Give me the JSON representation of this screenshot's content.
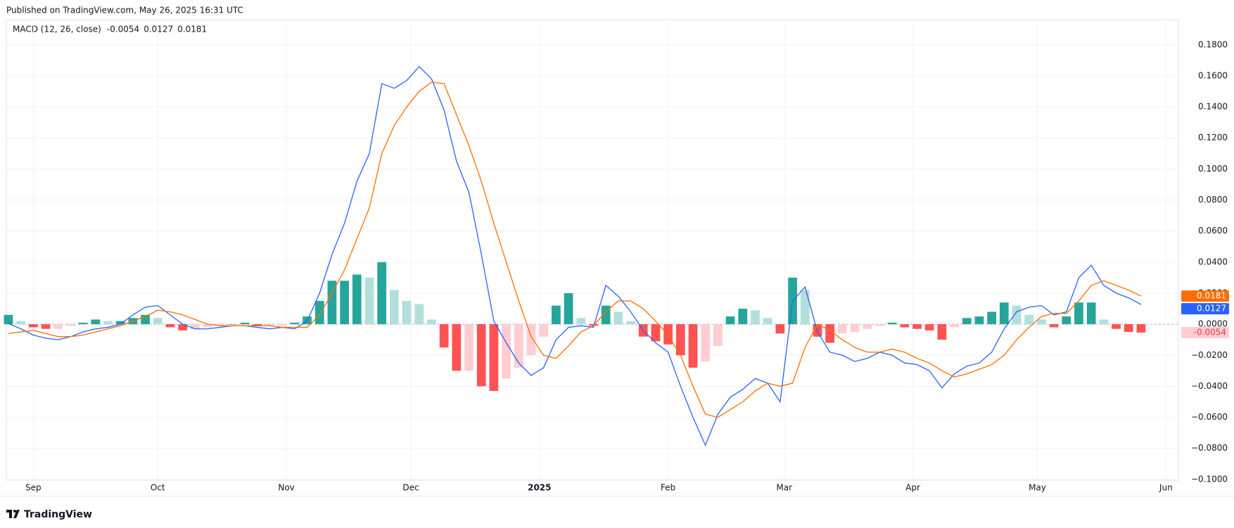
{
  "header": "Published on TradingView.com, May 26, 2025 16:31 UTC",
  "footer": "TradingView",
  "chart_data": {
    "type": "macd",
    "indicator": "MACD (12, 26, close)",
    "xlim": [
      -6.5,
      276
    ],
    "ylim": [
      -0.1005,
      0.1962
    ],
    "xticks": [
      {
        "value": 0,
        "label": "Sep"
      },
      {
        "value": 30,
        "label": "Oct"
      },
      {
        "value": 61,
        "label": "Nov"
      },
      {
        "value": 91,
        "label": "Dec"
      },
      {
        "value": 122,
        "label": "2025"
      },
      {
        "value": 153,
        "label": "Feb"
      },
      {
        "value": 181,
        "label": "Mar"
      },
      {
        "value": 212,
        "label": "Apr"
      },
      {
        "value": 242,
        "label": "May"
      },
      {
        "value": 273,
        "label": "Jun"
      }
    ],
    "yticks": [
      {
        "value": 0.18,
        "label": "0.1800"
      },
      {
        "value": 0.16,
        "label": "0.1600"
      },
      {
        "value": 0.14,
        "label": "0.1400"
      },
      {
        "value": 0.12,
        "label": "0.1200"
      },
      {
        "value": 0.1,
        "label": "0.1000"
      },
      {
        "value": 0.08,
        "label": "0.0800"
      },
      {
        "value": 0.06,
        "label": "0.0600"
      },
      {
        "value": 0.04,
        "label": "0.0400"
      },
      {
        "value": 0.02,
        "label": "0.0200"
      },
      {
        "value": 0,
        "label": "0.0000"
      },
      {
        "value": -0.02,
        "label": "−0.0200"
      },
      {
        "value": -0.04,
        "label": "−0.0400"
      },
      {
        "value": -0.06,
        "label": "−0.0600"
      },
      {
        "value": -0.08,
        "label": "−0.0800"
      },
      {
        "value": -0.1,
        "label": "−0.1000"
      }
    ],
    "grid": true,
    "x": [
      -6,
      -3,
      0,
      3,
      6,
      9,
      12,
      15,
      18,
      21,
      24,
      27,
      30,
      33,
      36,
      39,
      42,
      45,
      48,
      51,
      54,
      57,
      60,
      63,
      66,
      69,
      72,
      75,
      78,
      81,
      84,
      87,
      90,
      93,
      96,
      99,
      102,
      105,
      108,
      111,
      114,
      117,
      120,
      123,
      126,
      129,
      132,
      135,
      138,
      141,
      144,
      147,
      150,
      153,
      156,
      159,
      162,
      165,
      168,
      171,
      174,
      177,
      180,
      183,
      186,
      189,
      192,
      195,
      198,
      201,
      204,
      207,
      210,
      213,
      216,
      219,
      222,
      225,
      228,
      231,
      234,
      237,
      240,
      243,
      246,
      249,
      252,
      255,
      258,
      261,
      264,
      267
    ],
    "histogram": {
      "colors": {
        "rise_up": "#26a69a",
        "fall_up": "#b2dfdb",
        "fall_down": "#ff5252",
        "rise_down": "#ffcdd2"
      },
      "values": [
        0.006,
        0.002,
        -0.002,
        -0.003,
        -0.003,
        -0.001,
        0.001,
        0.003,
        0.002,
        0.002,
        0.004,
        0.006,
        0.004,
        -0.002,
        -0.004,
        -0.003,
        -0.002,
        -0.001,
        0.0,
        0.001,
        -0.001,
        -0.001,
        -0.001,
        0.001,
        0.005,
        0.015,
        0.028,
        0.028,
        0.032,
        0.03,
        0.04,
        0.022,
        0.015,
        0.013,
        0.003,
        -0.015,
        -0.03,
        -0.03,
        -0.04,
        -0.043,
        -0.035,
        -0.028,
        -0.02,
        -0.008,
        0.012,
        0.02,
        0.004,
        -0.001,
        0.012,
        0.008,
        0.002,
        -0.008,
        -0.011,
        -0.013,
        -0.02,
        -0.028,
        -0.024,
        -0.014,
        0.005,
        0.01,
        0.009,
        0.004,
        -0.006,
        0.03,
        0.022,
        -0.008,
        -0.012,
        -0.006,
        -0.005,
        -0.003,
        -0.001,
        0.001,
        -0.002,
        -0.003,
        -0.004,
        -0.01,
        -0.002,
        0.004,
        0.005,
        0.008,
        0.014,
        0.012,
        0.006,
        0.003,
        -0.002,
        0.005,
        0.014,
        0.014,
        0.003,
        -0.003,
        -0.005,
        -0.0054
      ],
      "label_color": "#f7a8b5"
    },
    "series": [
      {
        "color": "#2962ff",
        "values": [
          0.0005,
          -0.003,
          -0.007,
          -0.009,
          -0.01,
          -0.008,
          -0.005,
          -0.003,
          -0.002,
          0.0,
          0.006,
          0.011,
          0.012,
          0.006,
          0.0,
          -0.003,
          -0.003,
          -0.002,
          -0.001,
          -0.001,
          -0.002,
          -0.003,
          -0.002,
          -0.003,
          0.002,
          0.02,
          0.045,
          0.065,
          0.092,
          0.11,
          0.155,
          0.152,
          0.157,
          0.166,
          0.158,
          0.138,
          0.105,
          0.085,
          0.045,
          0.002,
          -0.012,
          -0.025,
          -0.033,
          -0.028,
          -0.01,
          -0.002,
          -0.001,
          -0.002,
          0.025,
          0.018,
          0.008,
          -0.004,
          -0.012,
          -0.018,
          -0.04,
          -0.06,
          -0.078,
          -0.058,
          -0.047,
          -0.042,
          -0.035,
          -0.038,
          -0.05,
          0.015,
          0.024,
          -0.005,
          -0.018,
          -0.02,
          -0.024,
          -0.022,
          -0.018,
          -0.02,
          -0.025,
          -0.026,
          -0.03,
          -0.041,
          -0.032,
          -0.027,
          -0.025,
          -0.018,
          -0.003,
          0.008,
          0.011,
          0.012,
          0.006,
          0.008,
          0.03,
          0.038,
          0.025,
          0.02,
          0.017,
          0.0127
        ]
      },
      {
        "color": "#ff6d00",
        "values": [
          -0.006,
          -0.005,
          -0.004,
          -0.006,
          -0.008,
          -0.008,
          -0.007,
          -0.005,
          -0.003,
          -0.001,
          0.002,
          0.005,
          0.009,
          0.008,
          0.006,
          0.003,
          0.0,
          -0.001,
          -0.001,
          -0.001,
          -0.001,
          -0.001,
          -0.002,
          -0.002,
          -0.002,
          0.006,
          0.02,
          0.035,
          0.055,
          0.075,
          0.11,
          0.128,
          0.14,
          0.15,
          0.156,
          0.155,
          0.135,
          0.115,
          0.092,
          0.065,
          0.04,
          0.015,
          -0.008,
          -0.02,
          -0.022,
          -0.014,
          -0.005,
          -0.001,
          0.008,
          0.015,
          0.015,
          0.01,
          0.002,
          -0.007,
          -0.02,
          -0.04,
          -0.058,
          -0.06,
          -0.055,
          -0.05,
          -0.043,
          -0.038,
          -0.04,
          -0.038,
          -0.015,
          0.0,
          -0.004,
          -0.01,
          -0.015,
          -0.018,
          -0.018,
          -0.016,
          -0.018,
          -0.022,
          -0.025,
          -0.03,
          -0.034,
          -0.032,
          -0.029,
          -0.026,
          -0.02,
          -0.01,
          -0.002,
          0.005,
          0.007,
          0.007,
          0.015,
          0.025,
          0.028,
          0.025,
          0.022,
          0.0181
        ]
      }
    ]
  }
}
